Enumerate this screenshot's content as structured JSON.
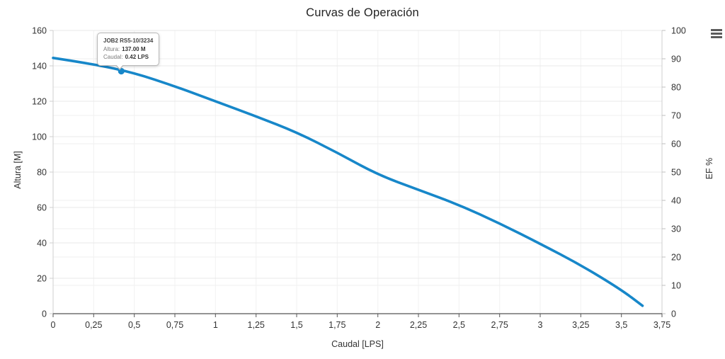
{
  "title": "Curvas de Operación",
  "menu": {
    "icon": "hamburger-icon",
    "color": "#5a5a5a"
  },
  "accent_color": "#1787c9",
  "tooltip": {
    "series_label": "JOB2 RS5-10/3234",
    "rows": [
      {
        "label": "Altura:",
        "value": "137.00 M"
      },
      {
        "label": "Caudal:",
        "value": "0.42 LPS"
      }
    ]
  },
  "chart_data": {
    "type": "line",
    "title": "Curvas de Operación",
    "xlabel": "Caudal [LPS]",
    "ylabel_left": "Altura [M]",
    "ylabel_right": "EF %",
    "xlim": [
      0,
      3.75
    ],
    "ylim_left": [
      0,
      160
    ],
    "ylim_right": [
      0,
      100
    ],
    "grid": true,
    "legend_position": "none",
    "x_tick_values": [
      0,
      0.25,
      0.5,
      0.75,
      1,
      1.25,
      1.5,
      1.75,
      2,
      2.25,
      2.5,
      2.75,
      3,
      3.25,
      3.5,
      3.75
    ],
    "x_tick_labels": [
      "0",
      "0,25",
      "0,5",
      "0,75",
      "1",
      "1,25",
      "1,5",
      "1,75",
      "2",
      "2,25",
      "2,5",
      "2,75",
      "3",
      "3,25",
      "3,5",
      "3,75"
    ],
    "y_left_tick_values": [
      0,
      20,
      40,
      60,
      80,
      100,
      120,
      140,
      160
    ],
    "y_left_tick_labels": [
      "0",
      "20",
      "40",
      "60",
      "80",
      "100",
      "120",
      "140",
      "160"
    ],
    "y_right_tick_values": [
      0,
      10,
      20,
      30,
      40,
      50,
      60,
      70,
      80,
      90,
      100
    ],
    "y_right_tick_labels": [
      "0",
      "10",
      "20",
      "30",
      "40",
      "50",
      "60",
      "70",
      "80",
      "90",
      "100"
    ],
    "series": [
      {
        "name": "JOB2 RS5-10/3234",
        "color": "#1787c9",
        "axis": "left",
        "points": [
          [
            0,
            144.5
          ],
          [
            0.25,
            141
          ],
          [
            0.5,
            136
          ],
          [
            0.75,
            128.5
          ],
          [
            1,
            120
          ],
          [
            1.25,
            111.5
          ],
          [
            1.5,
            102.5
          ],
          [
            1.75,
            91
          ],
          [
            2,
            78.5
          ],
          [
            2.25,
            70
          ],
          [
            2.5,
            61.5
          ],
          [
            2.75,
            51
          ],
          [
            3,
            39.5
          ],
          [
            3.25,
            27.5
          ],
          [
            3.5,
            13.5
          ],
          [
            3.63,
            4.5
          ]
        ]
      }
    ],
    "marker": {
      "x": 0.42,
      "y": 137,
      "color": "#1787c9"
    }
  }
}
